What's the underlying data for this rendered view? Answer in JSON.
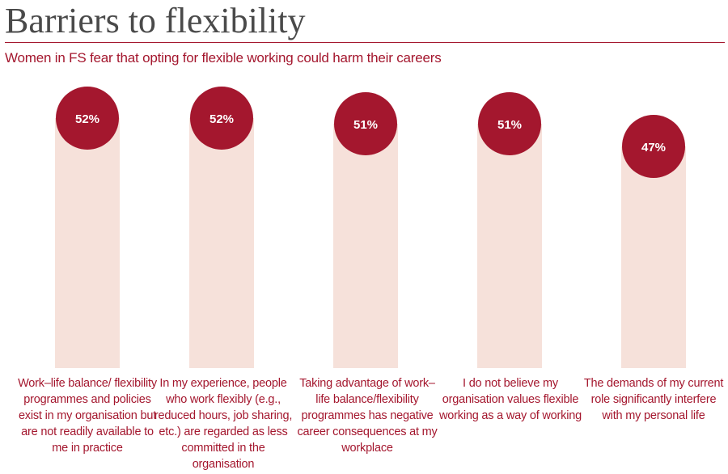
{
  "title": "Barriers to flexibility",
  "subtitle": "Women in FS fear that opting for flexible working could harm their careers",
  "chart_data": {
    "type": "bar",
    "categories": [
      "Work–life balance/ flexibility programmes and policies exist in my organisation but are not readily available to me in practice",
      "In my experience, people who work flexibly (e.g., reduced hours, job sharing, etc.) are regarded as less committed in the organisation",
      "Taking advantage of work–life balance/flexibility programmes has negative career consequences at my workplace",
      "I do not believe my organisation values flexible working as a way of working",
      "The demands of my current role significantly interfere with my personal life"
    ],
    "values": [
      52,
      52,
      51,
      51,
      47
    ],
    "value_labels": [
      "52%",
      "52%",
      "51%",
      "51%",
      "47%"
    ],
    "ylim": [
      0,
      100
    ],
    "colors": {
      "bar": "#f6e1da",
      "marker": "#a4172e",
      "marker_text": "#ffffff",
      "label": "#a4172e"
    }
  }
}
